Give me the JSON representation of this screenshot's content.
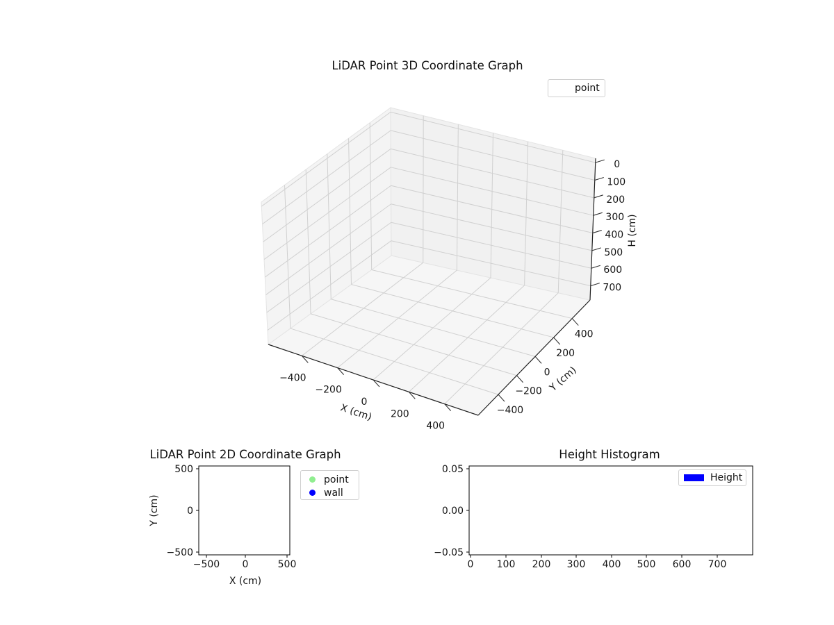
{
  "figure": {
    "background": "#ffffff"
  },
  "chart_data": [
    {
      "id": "plot3d",
      "type": "scatter",
      "projection": "3d",
      "title": "LiDAR Point 3D Coordinate Graph",
      "xlabel": "X (cm)",
      "ylabel": "Y (cm)",
      "zlabel": "H (cm)",
      "xticks": [
        -400,
        -200,
        0,
        200,
        400
      ],
      "yticks": [
        -400,
        -200,
        0,
        200,
        400
      ],
      "zticks": [
        0,
        100,
        200,
        300,
        400,
        500,
        600,
        700
      ],
      "xtick_labels": [
        "−400",
        "−200",
        "0",
        "200",
        "400"
      ],
      "ytick_labels": [
        "−400",
        "−200",
        "0",
        "200",
        "400"
      ],
      "ztick_labels": [
        "0",
        "100",
        "200",
        "300",
        "400",
        "500",
        "600",
        "700"
      ],
      "xlim_approx": [
        -500,
        500
      ],
      "ylim_approx": [
        -500,
        500
      ],
      "zlim_approx": [
        0,
        700
      ],
      "zaxis_inverted": true,
      "grid": true,
      "legend": {
        "position": "upper right",
        "entries": [
          {
            "label": "point",
            "color": "none"
          }
        ]
      },
      "series": [
        {
          "name": "point",
          "points": []
        }
      ]
    },
    {
      "id": "plot2d",
      "type": "scatter",
      "title": "LiDAR Point 2D Coordinate Graph",
      "xlabel": "X (cm)",
      "ylabel": "Y (cm)",
      "xticks": [
        -500,
        0,
        500
      ],
      "yticks": [
        500,
        0,
        -500
      ],
      "xtick_labels": [
        "−500",
        "0",
        "500"
      ],
      "ytick_labels": [
        "500",
        "0",
        "−500"
      ],
      "xlim_approx": [
        -600,
        570
      ],
      "ylim_approx": [
        -600,
        570
      ],
      "grid": false,
      "legend": {
        "position": "outside upper right",
        "entries": [
          {
            "label": "point",
            "color": "#90ee90"
          },
          {
            "label": "wall",
            "color": "#0000ff"
          }
        ]
      },
      "series": [
        {
          "name": "point",
          "points": []
        },
        {
          "name": "wall",
          "points": []
        }
      ]
    },
    {
      "id": "height_histogram",
      "type": "bar",
      "title": "Height Histogram",
      "xlabel": "",
      "ylabel": "",
      "xticks": [
        0,
        100,
        200,
        300,
        400,
        500,
        600,
        700
      ],
      "yticks": [
        0.05,
        0.0,
        -0.05
      ],
      "xtick_labels": [
        "0",
        "100",
        "200",
        "300",
        "400",
        "500",
        "600",
        "700"
      ],
      "ytick_labels": [
        "0.05",
        "0.00",
        "−0.05"
      ],
      "xlim_approx": [
        0,
        800
      ],
      "ylim_approx": [
        -0.055,
        0.055
      ],
      "grid": false,
      "legend": {
        "position": "upper right",
        "entries": [
          {
            "label": "Height",
            "color": "#0000ff"
          }
        ]
      },
      "values": []
    }
  ]
}
